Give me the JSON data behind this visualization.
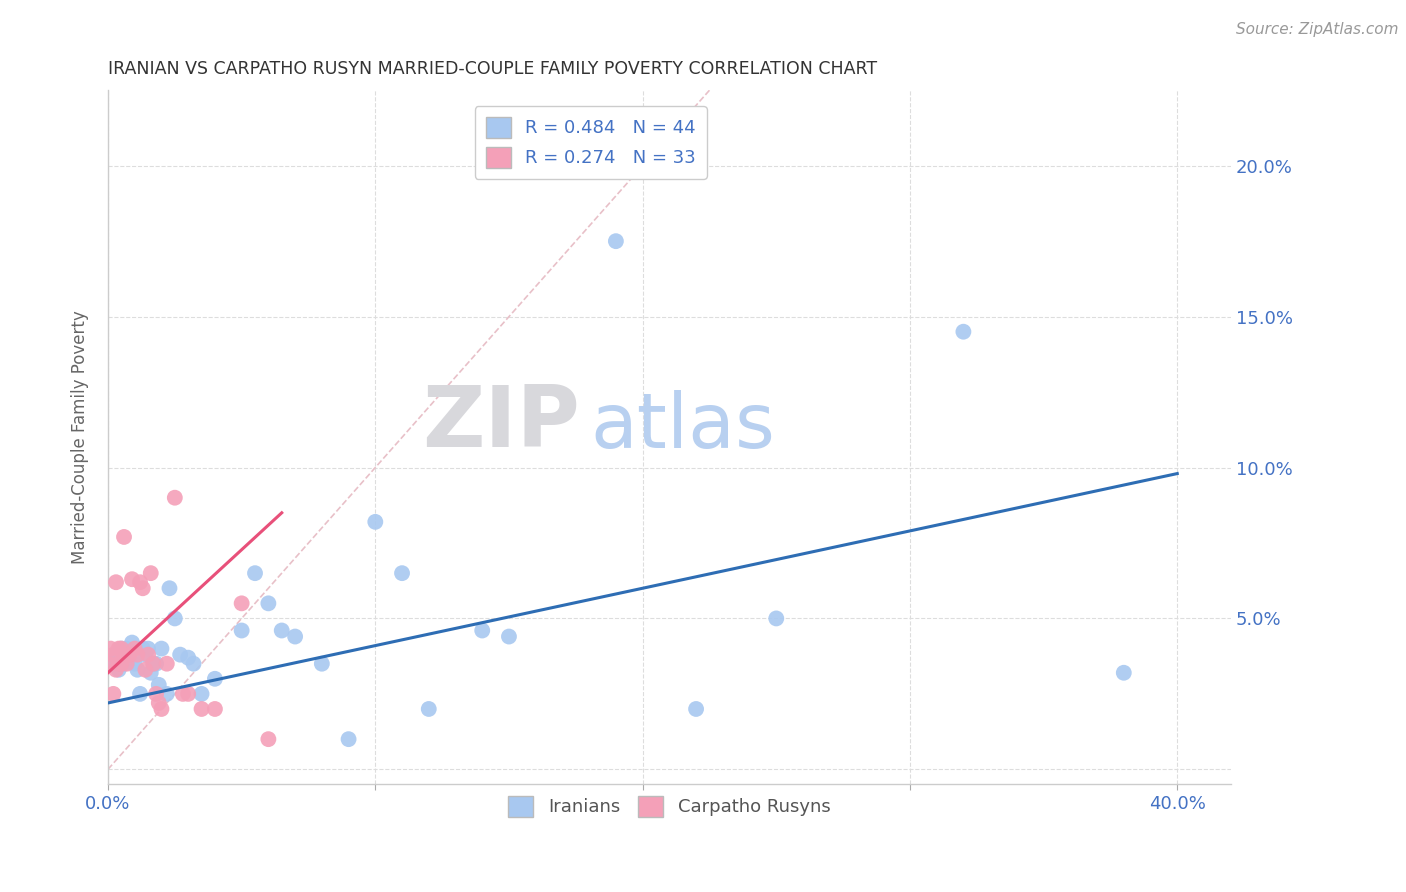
{
  "title": "IRANIAN VS CARPATHO RUSYN MARRIED-COUPLE FAMILY POVERTY CORRELATION CHART",
  "source": "Source: ZipAtlas.com",
  "ylabel": "Married-Couple Family Poverty",
  "xlim": [
    0.0,
    0.42
  ],
  "ylim": [
    -0.005,
    0.225
  ],
  "x_ticks": [
    0.0,
    0.1,
    0.2,
    0.3,
    0.4
  ],
  "x_tick_labels": [
    "0.0%",
    "",
    "",
    "",
    "40.0%"
  ],
  "y_ticks": [
    0.0,
    0.05,
    0.1,
    0.15,
    0.2
  ],
  "y_tick_labels": [
    "",
    "5.0%",
    "10.0%",
    "15.0%",
    "20.0%"
  ],
  "legend_entries": [
    {
      "label": "R = 0.484   N = 44",
      "color": "#A8C8F0"
    },
    {
      "label": "R = 0.274   N = 33",
      "color": "#F4A0B8"
    }
  ],
  "legend_labels": [
    "Iranians",
    "Carpatho Rusyns"
  ],
  "iranian_color": "#A8C8F0",
  "carpatho_color": "#F4A0B8",
  "iranian_line_color": "#2E6DB4",
  "carpatho_line_color": "#E8507A",
  "diagonal_color": "#E8C0C8",
  "background_color": "#FFFFFF",
  "watermark_zip": "ZIP",
  "watermark_atlas": "atlas",
  "watermark_zip_color": "#D8D8DC",
  "watermark_atlas_color": "#B8D0F0",
  "iranians_x": [
    0.002,
    0.003,
    0.004,
    0.005,
    0.006,
    0.007,
    0.008,
    0.009,
    0.01,
    0.011,
    0.012,
    0.013,
    0.014,
    0.015,
    0.016,
    0.017,
    0.018,
    0.019,
    0.02,
    0.022,
    0.023,
    0.025,
    0.027,
    0.03,
    0.032,
    0.035,
    0.04,
    0.05,
    0.055,
    0.06,
    0.065,
    0.07,
    0.08,
    0.09,
    0.1,
    0.11,
    0.12,
    0.14,
    0.15,
    0.19,
    0.22,
    0.25,
    0.32,
    0.38
  ],
  "iranians_y": [
    0.035,
    0.038,
    0.033,
    0.04,
    0.035,
    0.04,
    0.037,
    0.042,
    0.035,
    0.033,
    0.025,
    0.04,
    0.038,
    0.04,
    0.032,
    0.035,
    0.035,
    0.028,
    0.04,
    0.025,
    0.06,
    0.05,
    0.038,
    0.037,
    0.035,
    0.025,
    0.03,
    0.046,
    0.065,
    0.055,
    0.046,
    0.044,
    0.035,
    0.01,
    0.082,
    0.065,
    0.02,
    0.046,
    0.044,
    0.175,
    0.02,
    0.05,
    0.145,
    0.032
  ],
  "carpatho_x": [
    0.0,
    0.001,
    0.002,
    0.002,
    0.003,
    0.003,
    0.004,
    0.004,
    0.005,
    0.005,
    0.006,
    0.007,
    0.008,
    0.009,
    0.01,
    0.011,
    0.012,
    0.013,
    0.014,
    0.015,
    0.016,
    0.017,
    0.018,
    0.019,
    0.02,
    0.022,
    0.025,
    0.028,
    0.03,
    0.035,
    0.04,
    0.05,
    0.06
  ],
  "carpatho_y": [
    0.035,
    0.04,
    0.038,
    0.025,
    0.033,
    0.062,
    0.035,
    0.04,
    0.04,
    0.035,
    0.077,
    0.035,
    0.038,
    0.063,
    0.04,
    0.038,
    0.062,
    0.06,
    0.033,
    0.038,
    0.065,
    0.035,
    0.025,
    0.022,
    0.02,
    0.035,
    0.09,
    0.025,
    0.025,
    0.02,
    0.02,
    0.055,
    0.01
  ],
  "iranian_line_x": [
    0.0,
    0.4
  ],
  "iranian_line_y": [
    0.022,
    0.098
  ],
  "carpatho_line_x": [
    0.0,
    0.065
  ],
  "carpatho_line_y": [
    0.032,
    0.085
  ],
  "diag_line_x": [
    0.0,
    0.225
  ],
  "diag_line_y": [
    0.0,
    0.225
  ]
}
